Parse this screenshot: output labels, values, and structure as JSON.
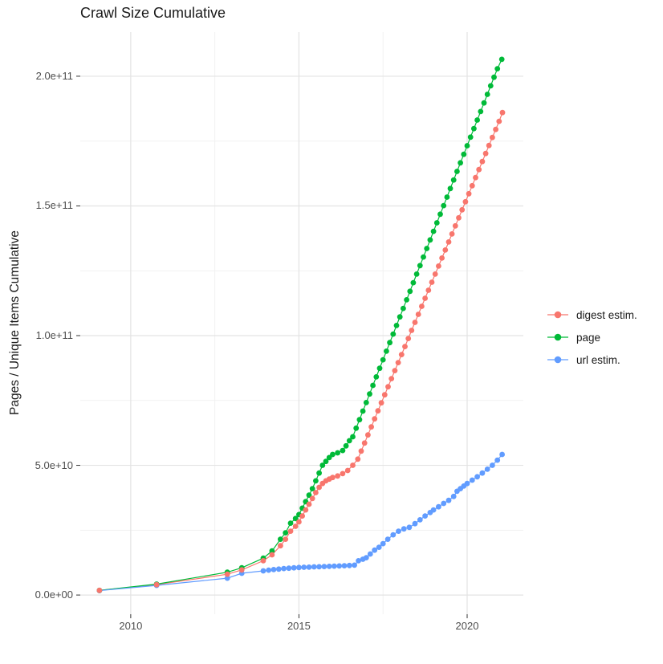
{
  "title": "Crawl Size Cumulative",
  "axes": {
    "y_title": "Pages / Unique Items Cumulative"
  },
  "legend": {
    "items": [
      {
        "label": "digest estim.",
        "color": "#F8766D"
      },
      {
        "label": "page",
        "color": "#00BA38"
      },
      {
        "label": "url estim.",
        "color": "#619CFF"
      }
    ]
  },
  "chart_data": {
    "type": "scatter",
    "title": "Crawl Size Cumulative",
    "xlabel": "",
    "ylabel": "Pages / Unique Items Cumulative",
    "values_unit": "1e9",
    "grid": true,
    "legend_position": "right",
    "xlim": [
      2008.5,
      2021.67
    ],
    "ylim_e9": [
      -7.4,
      217
    ],
    "x_major_ticks": [
      {
        "value": 2010,
        "label": "2010"
      },
      {
        "value": 2015,
        "label": "2015"
      },
      {
        "value": 2020,
        "label": "2020"
      }
    ],
    "x_minor_ticks": [
      2012.5,
      2017.5
    ],
    "y_major_ticks": [
      {
        "value": 0,
        "label": "0.0e+00"
      },
      {
        "value": 50,
        "label": "5.0e+10"
      },
      {
        "value": 100,
        "label": "1.0e+11"
      },
      {
        "value": 150,
        "label": "1.5e+11"
      },
      {
        "value": 200,
        "label": "2.0e+11"
      }
    ],
    "y_minor_ticks": [
      25,
      75,
      125,
      175
    ],
    "series": [
      {
        "name": "digest estim.",
        "color": "#F8766D",
        "points": [
          [
            2009.07,
            1.8
          ],
          [
            2010.77,
            4.0
          ],
          [
            2012.87,
            8.0
          ],
          [
            2013.3,
            9.7
          ],
          [
            2013.94,
            13.2
          ],
          [
            2014.2,
            15.5
          ],
          [
            2014.45,
            19.0
          ],
          [
            2014.6,
            21.5
          ],
          [
            2014.75,
            24.6
          ],
          [
            2014.9,
            26.5
          ],
          [
            2015.0,
            28.2
          ],
          [
            2015.1,
            30.5
          ],
          [
            2015.2,
            32.8
          ],
          [
            2015.3,
            35.0
          ],
          [
            2015.4,
            37.2
          ],
          [
            2015.5,
            39.5
          ],
          [
            2015.6,
            41.5
          ],
          [
            2015.7,
            43.0
          ],
          [
            2015.8,
            44.0
          ],
          [
            2015.9,
            44.7
          ],
          [
            2016.0,
            45.3
          ],
          [
            2016.15,
            45.9
          ],
          [
            2016.3,
            46.8
          ],
          [
            2016.45,
            48.0
          ],
          [
            2016.6,
            50.0
          ],
          [
            2016.75,
            52.4
          ],
          [
            2016.85,
            55.5
          ],
          [
            2016.95,
            58.6
          ],
          [
            2017.05,
            61.7
          ],
          [
            2017.15,
            64.8
          ],
          [
            2017.25,
            67.9
          ],
          [
            2017.35,
            71.0
          ],
          [
            2017.45,
            74.1
          ],
          [
            2017.55,
            77.2
          ],
          [
            2017.65,
            80.3
          ],
          [
            2017.75,
            83.4
          ],
          [
            2017.85,
            86.5
          ],
          [
            2017.95,
            89.6
          ],
          [
            2018.05,
            92.7
          ],
          [
            2018.15,
            95.8
          ],
          [
            2018.25,
            98.9
          ],
          [
            2018.35,
            102.0
          ],
          [
            2018.45,
            105.1
          ],
          [
            2018.55,
            108.2
          ],
          [
            2018.65,
            111.3
          ],
          [
            2018.75,
            114.4
          ],
          [
            2018.85,
            117.5
          ],
          [
            2018.95,
            120.6
          ],
          [
            2019.05,
            123.7
          ],
          [
            2019.15,
            126.8
          ],
          [
            2019.25,
            129.9
          ],
          [
            2019.35,
            133.0
          ],
          [
            2019.45,
            136.1
          ],
          [
            2019.55,
            139.2
          ],
          [
            2019.65,
            142.3
          ],
          [
            2019.75,
            145.4
          ],
          [
            2019.85,
            148.5
          ],
          [
            2019.95,
            151.6
          ],
          [
            2020.05,
            154.7
          ],
          [
            2020.15,
            157.8
          ],
          [
            2020.25,
            160.9
          ],
          [
            2020.35,
            164.0
          ],
          [
            2020.45,
            167.1
          ],
          [
            2020.55,
            170.2
          ],
          [
            2020.65,
            173.3
          ],
          [
            2020.75,
            176.4
          ],
          [
            2020.85,
            179.5
          ],
          [
            2020.95,
            182.6
          ],
          [
            2021.05,
            186.0
          ]
        ]
      },
      {
        "name": "page",
        "color": "#00BA38",
        "points": [
          [
            2009.07,
            1.8
          ],
          [
            2010.77,
            4.2
          ],
          [
            2012.87,
            8.8
          ],
          [
            2013.3,
            10.5
          ],
          [
            2013.94,
            14.2
          ],
          [
            2014.2,
            17.0
          ],
          [
            2014.45,
            21.5
          ],
          [
            2014.6,
            24.0
          ],
          [
            2014.75,
            27.7
          ],
          [
            2014.9,
            29.5
          ],
          [
            2015.0,
            31.0
          ],
          [
            2015.1,
            33.5
          ],
          [
            2015.2,
            36.0
          ],
          [
            2015.3,
            38.5
          ],
          [
            2015.4,
            41.0
          ],
          [
            2015.5,
            44.0
          ],
          [
            2015.6,
            47.0
          ],
          [
            2015.7,
            50.0
          ],
          [
            2015.8,
            51.5
          ],
          [
            2015.9,
            53.0
          ],
          [
            2016.0,
            54.2
          ],
          [
            2016.15,
            54.8
          ],
          [
            2016.3,
            55.7
          ],
          [
            2016.4,
            57.5
          ],
          [
            2016.5,
            59.5
          ],
          [
            2016.6,
            61.0
          ],
          [
            2016.7,
            64.3
          ],
          [
            2016.8,
            67.6
          ],
          [
            2016.9,
            70.9
          ],
          [
            2017.0,
            74.2
          ],
          [
            2017.1,
            77.5
          ],
          [
            2017.2,
            80.8
          ],
          [
            2017.3,
            84.1
          ],
          [
            2017.4,
            87.4
          ],
          [
            2017.5,
            90.7
          ],
          [
            2017.6,
            94.0
          ],
          [
            2017.7,
            97.3
          ],
          [
            2017.8,
            100.6
          ],
          [
            2017.9,
            103.9
          ],
          [
            2018.0,
            107.2
          ],
          [
            2018.1,
            110.5
          ],
          [
            2018.2,
            113.8
          ],
          [
            2018.3,
            117.1
          ],
          [
            2018.4,
            120.4
          ],
          [
            2018.5,
            123.7
          ],
          [
            2018.6,
            127.0
          ],
          [
            2018.7,
            130.3
          ],
          [
            2018.8,
            133.6
          ],
          [
            2018.9,
            136.9
          ],
          [
            2019.0,
            140.2
          ],
          [
            2019.1,
            143.5
          ],
          [
            2019.2,
            146.8
          ],
          [
            2019.3,
            150.1
          ],
          [
            2019.4,
            153.4
          ],
          [
            2019.5,
            156.7
          ],
          [
            2019.6,
            160.0
          ],
          [
            2019.7,
            163.3
          ],
          [
            2019.8,
            166.6
          ],
          [
            2019.9,
            169.9
          ],
          [
            2020.0,
            173.2
          ],
          [
            2020.1,
            176.5
          ],
          [
            2020.2,
            179.8
          ],
          [
            2020.3,
            183.1
          ],
          [
            2020.4,
            186.4
          ],
          [
            2020.5,
            189.7
          ],
          [
            2020.6,
            193.0
          ],
          [
            2020.7,
            196.3
          ],
          [
            2020.8,
            199.6
          ],
          [
            2020.9,
            202.9
          ],
          [
            2021.03,
            206.5
          ]
        ]
      },
      {
        "name": "url estim.",
        "color": "#619CFF",
        "points": [
          [
            2009.07,
            1.7
          ],
          [
            2010.77,
            3.7
          ],
          [
            2012.87,
            6.5
          ],
          [
            2013.3,
            8.4
          ],
          [
            2013.94,
            9.3
          ],
          [
            2014.1,
            9.6
          ],
          [
            2014.25,
            9.8
          ],
          [
            2014.4,
            10.0
          ],
          [
            2014.55,
            10.2
          ],
          [
            2014.7,
            10.35
          ],
          [
            2014.85,
            10.5
          ],
          [
            2015.0,
            10.6
          ],
          [
            2015.15,
            10.7
          ],
          [
            2015.3,
            10.75
          ],
          [
            2015.45,
            10.85
          ],
          [
            2015.6,
            10.9
          ],
          [
            2015.75,
            11.0
          ],
          [
            2015.9,
            11.05
          ],
          [
            2016.05,
            11.15
          ],
          [
            2016.2,
            11.2
          ],
          [
            2016.35,
            11.3
          ],
          [
            2016.5,
            11.4
          ],
          [
            2016.65,
            11.5
          ],
          [
            2016.77,
            13.2
          ],
          [
            2016.9,
            13.8
          ],
          [
            2017.0,
            14.4
          ],
          [
            2017.12,
            15.8
          ],
          [
            2017.25,
            17.3
          ],
          [
            2017.38,
            18.4
          ],
          [
            2017.5,
            19.8
          ],
          [
            2017.64,
            21.5
          ],
          [
            2017.8,
            23.2
          ],
          [
            2017.96,
            24.6
          ],
          [
            2018.12,
            25.5
          ],
          [
            2018.28,
            26.1
          ],
          [
            2018.45,
            27.5
          ],
          [
            2018.6,
            29.0
          ],
          [
            2018.75,
            30.5
          ],
          [
            2018.9,
            31.8
          ],
          [
            2019.0,
            32.8
          ],
          [
            2019.15,
            34.0
          ],
          [
            2019.3,
            35.3
          ],
          [
            2019.45,
            36.5
          ],
          [
            2019.6,
            38.0
          ],
          [
            2019.7,
            40.0
          ],
          [
            2019.8,
            41.0
          ],
          [
            2019.9,
            42.0
          ],
          [
            2020.0,
            43.0
          ],
          [
            2020.15,
            44.3
          ],
          [
            2020.3,
            45.6
          ],
          [
            2020.45,
            47.0
          ],
          [
            2020.6,
            48.5
          ],
          [
            2020.75,
            50.0
          ],
          [
            2020.9,
            52.0
          ],
          [
            2021.04,
            54.2
          ]
        ]
      }
    ]
  }
}
